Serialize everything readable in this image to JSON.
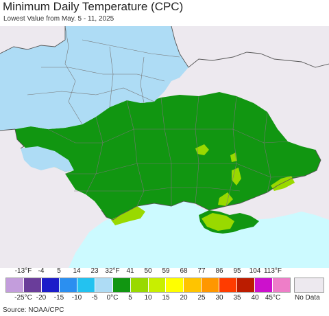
{
  "title": "Minimum Daily Temperature (CPC)",
  "subtitle": "Lowest Value from May. 5 - 11, 2025",
  "source": "Source: NOAA/CPC",
  "legend": {
    "fahrenheit_labels": [
      "-13°F",
      "-4",
      "5",
      "14",
      "23",
      "32°F",
      "41",
      "50",
      "59",
      "68",
      "77",
      "86",
      "95",
      "104",
      "113°F"
    ],
    "celsius_labels": [
      "-25°C",
      "-20",
      "-15",
      "-10",
      "-5",
      "0°C",
      "5",
      "10",
      "15",
      "20",
      "25",
      "30",
      "35",
      "40",
      "45°C"
    ],
    "colors": [
      "#c39ddc",
      "#6a3d9a",
      "#1c1cc9",
      "#2b8ff0",
      "#23c2f0",
      "#aedcf5",
      "#119611",
      "#99d900",
      "#c8ef00",
      "#ffff00",
      "#ffc400",
      "#ff9700",
      "#ff3c00",
      "#bb1c00",
      "#cc11cc",
      "#ee7ec8"
    ],
    "no_data_label": "No Data",
    "no_data_color": "#ede9ef"
  },
  "map_colors": {
    "background": "#ede9ef",
    "sea": "#ccfaff",
    "cold": "#aedcf5",
    "zero_to_five": "#119611",
    "five_to_ten": "#99d900",
    "boundaries": "#777777"
  }
}
